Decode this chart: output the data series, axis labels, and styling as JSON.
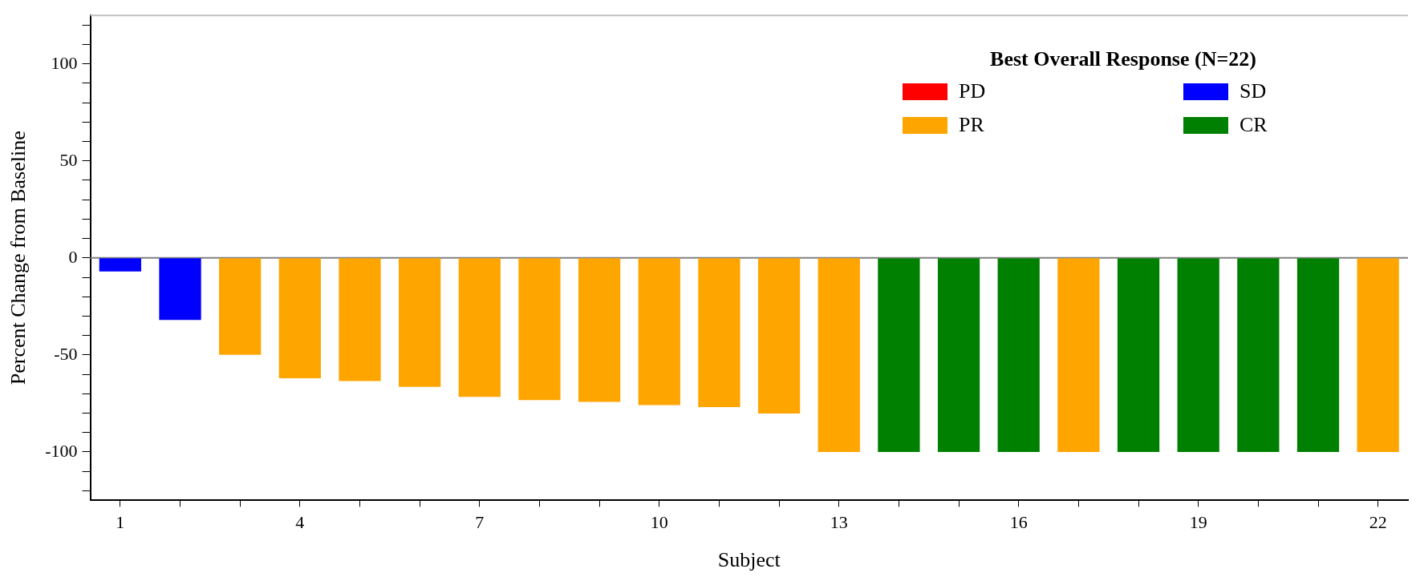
{
  "chart_data": {
    "type": "bar",
    "xlabel": "Subject",
    "ylabel": "Percent Change from Baseline",
    "legend_title": "Best Overall Response (N=22)",
    "categories": [
      "1",
      null,
      null,
      "4",
      null,
      null,
      "7",
      null,
      null,
      "10",
      null,
      null,
      "13",
      null,
      null,
      "16",
      null,
      null,
      "19",
      null,
      null,
      "22"
    ],
    "stacked": true,
    "legend": "top right",
    "grid": false,
    "ylim": [
      -125,
      125
    ],
    "yticks": [
      {
        "value": -120,
        "label": null
      },
      {
        "value": -110,
        "label": null
      },
      -100,
      {
        "value": -90,
        "label": null
      },
      {
        "value": -80,
        "label": null
      },
      {
        "value": -70,
        "label": null
      },
      {
        "value": -60,
        "label": null
      },
      -50,
      {
        "value": -40,
        "label": null
      },
      {
        "value": -30,
        "label": null
      },
      {
        "value": -20,
        "label": null
      },
      {
        "value": -10,
        "label": null
      },
      0,
      {
        "value": 10,
        "label": null
      },
      {
        "value": 20,
        "label": null
      },
      {
        "value": 30,
        "label": null
      },
      {
        "value": 40,
        "label": null
      },
      50,
      {
        "value": 60,
        "label": null
      },
      {
        "value": 70,
        "label": null
      },
      {
        "value": 80,
        "label": null
      },
      {
        "value": 90,
        "label": null
      },
      100,
      {
        "value": 110,
        "label": null
      },
      {
        "value": 120,
        "label": null
      }
    ],
    "ref_lines": [
      {
        "axis": "y",
        "value": 0,
        "color": "#808080"
      }
    ],
    "series": [
      {
        "name": "PD",
        "color": "#ff0000",
        "values": [
          null,
          null,
          null,
          null,
          null,
          null,
          null,
          null,
          null,
          null,
          null,
          null,
          null,
          null,
          null,
          null,
          null,
          null,
          null,
          null,
          null,
          null
        ]
      },
      {
        "name": "SD",
        "color": "#0000ff",
        "values": [
          -7,
          -32,
          null,
          null,
          null,
          null,
          null,
          null,
          null,
          null,
          null,
          null,
          null,
          null,
          null,
          null,
          null,
          null,
          null,
          null,
          null,
          null
        ]
      },
      {
        "name": "PR",
        "color": "#ffa500",
        "values": [
          null,
          null,
          -50,
          -62,
          -63.5,
          -66.5,
          -71.7,
          -73.3,
          -74.2,
          -75.9,
          -76.9,
          -80.2,
          -100,
          null,
          null,
          null,
          -100,
          null,
          null,
          null,
          null,
          -100
        ]
      },
      {
        "name": "CR",
        "color": "#008000",
        "values": [
          null,
          null,
          null,
          null,
          null,
          null,
          null,
          null,
          null,
          null,
          null,
          null,
          null,
          -100,
          -100,
          -100,
          null,
          -100,
          -100,
          -100,
          -100,
          null
        ]
      }
    ]
  }
}
